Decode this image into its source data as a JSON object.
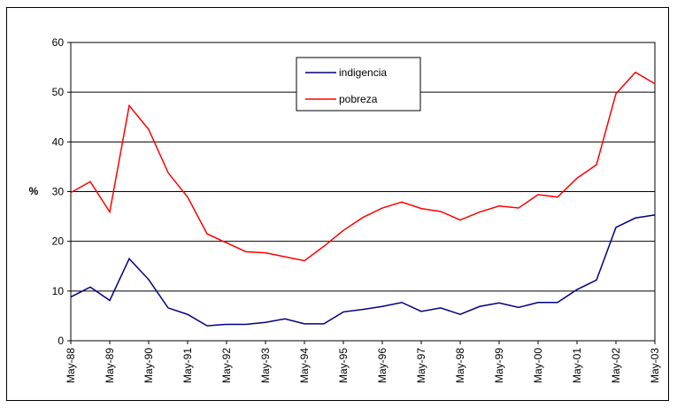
{
  "chart_data": {
    "type": "line",
    "y_label": "%",
    "categories": [
      "May-88",
      null,
      "May-89",
      null,
      "May-90",
      null,
      "May-91",
      null,
      "May-92",
      null,
      "May-93",
      null,
      "May-94",
      null,
      "May-95",
      null,
      "May-96",
      null,
      "May-97",
      null,
      "May-98",
      null,
      "May-99",
      null,
      "May-00",
      null,
      "May-01",
      null,
      "May-02",
      null,
      "May-03"
    ],
    "series": [
      {
        "name": "indigencia",
        "color": "#000080",
        "values": [
          8.8,
          10.8,
          8.1,
          16.5,
          12.3,
          6.6,
          5.3,
          3.0,
          3.3,
          3.3,
          3.7,
          4.4,
          3.4,
          3.4,
          5.8,
          6.3,
          6.9,
          7.7,
          5.9,
          6.6,
          5.3,
          6.9,
          7.6,
          6.7,
          7.7,
          7.7,
          10.3,
          12.2,
          22.8,
          24.7,
          25.3
        ]
      },
      {
        "name": "pobreza",
        "color": "#ff0000",
        "values": [
          29.8,
          32.0,
          25.9,
          47.3,
          42.5,
          33.8,
          28.9,
          21.5,
          19.7,
          17.9,
          17.7,
          16.9,
          16.1,
          19.0,
          22.2,
          24.8,
          26.7,
          27.9,
          26.6,
          26.0,
          24.3,
          25.9,
          27.1,
          26.7,
          29.4,
          28.9,
          32.7,
          35.4,
          49.7,
          54.0,
          51.7
        ]
      }
    ],
    "ylim": [
      0,
      60
    ],
    "yticks": [
      0,
      10,
      20,
      30,
      40,
      50,
      60
    ],
    "grid": true
  }
}
